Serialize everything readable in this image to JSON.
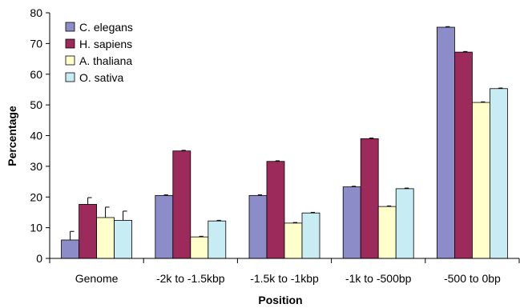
{
  "chart_data": {
    "type": "bar",
    "title": "",
    "xlabel": "Position",
    "ylabel": "Percentage",
    "ylim": [
      0,
      80
    ],
    "yticks": [
      0,
      10,
      20,
      30,
      40,
      50,
      60,
      70,
      80
    ],
    "grid": false,
    "legend_position": "top-left",
    "categories": [
      "Genome",
      "-2k to -1.5kbp",
      "-1.5k to -1kbp",
      "-1k to -500bp",
      "-500 to 0bp"
    ],
    "series": [
      {
        "name": "C. elegans",
        "color": "#8c8cc8",
        "values": [
          6.0,
          20.5,
          20.5,
          23.3,
          75.3
        ],
        "errors": [
          2.8,
          0.2,
          0.2,
          0.2,
          0.2
        ]
      },
      {
        "name": "H. sapiens",
        "color": "#9c2a5a",
        "values": [
          17.6,
          35.0,
          31.6,
          39.0,
          67.2
        ],
        "errors": [
          2.2,
          0.2,
          0.2,
          0.2,
          0.2
        ]
      },
      {
        "name": "A. thaliana",
        "color": "#ffffcc",
        "values": [
          13.3,
          7.0,
          11.5,
          16.9,
          50.8
        ],
        "errors": [
          3.4,
          0.2,
          0.2,
          0.2,
          0.2
        ]
      },
      {
        "name": "O. sativa",
        "color": "#c8ecf4",
        "values": [
          12.4,
          12.2,
          14.8,
          22.7,
          55.3
        ],
        "errors": [
          3.0,
          0.2,
          0.2,
          0.2,
          0.2
        ]
      }
    ]
  }
}
